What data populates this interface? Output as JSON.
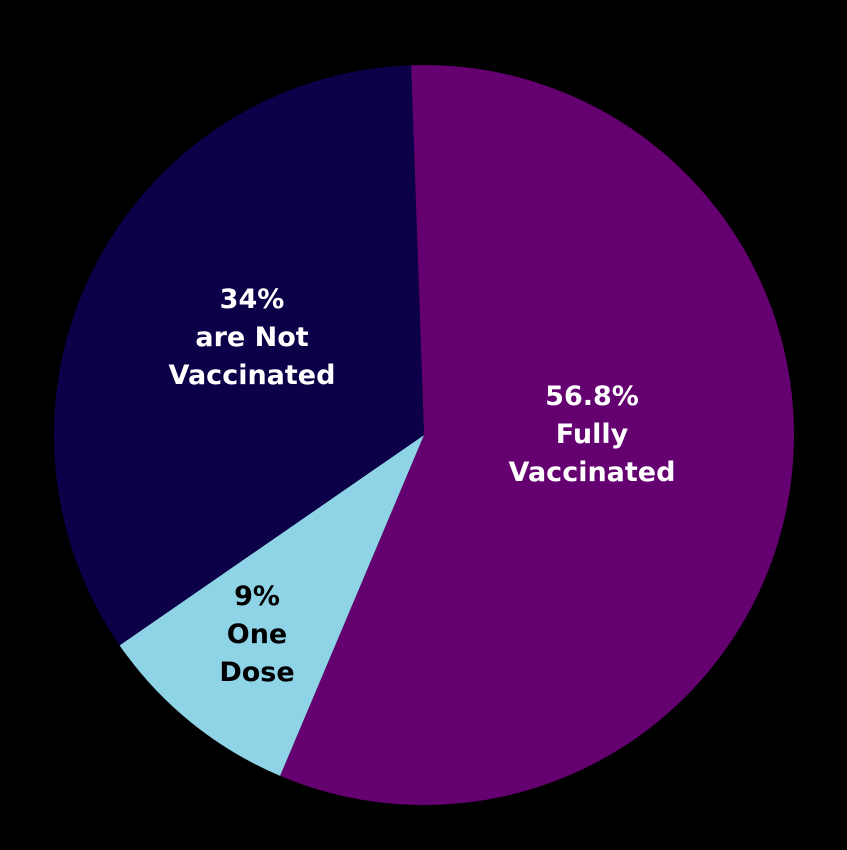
{
  "chart_data": {
    "type": "pie",
    "categories": [
      "Fully Vaccinated",
      "One Dose",
      "are Not Vaccinated"
    ],
    "values": [
      56.8,
      9,
      34
    ],
    "value_labels": [
      "56.8%",
      "9%",
      "34%"
    ],
    "colors": [
      "#640070",
      "#8ed3e6",
      "#0c0048"
    ]
  }
}
